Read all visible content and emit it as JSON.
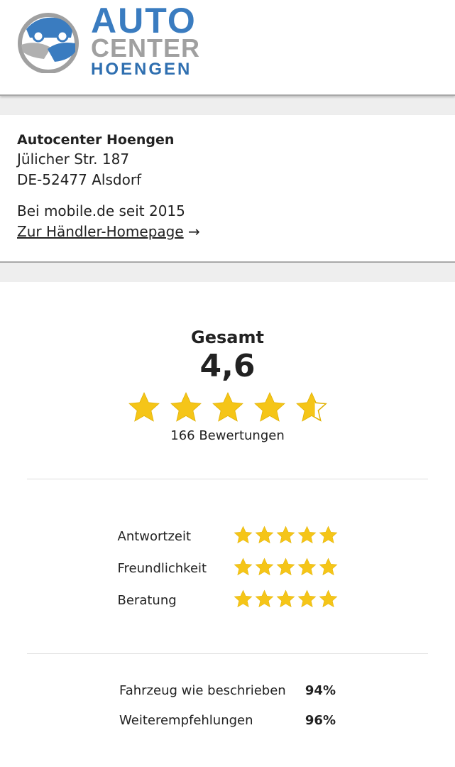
{
  "logo": {
    "line1": "AUTO",
    "line2": "CENTER",
    "line3": "HOENGEN"
  },
  "dealer": {
    "name": "Autocenter Hoengen",
    "street": "Jülicher Str. 187",
    "city": "DE-52477 Alsdorf",
    "since": "Bei mobile.de seit 2015",
    "homepage_link": "Zur Händler-Homepage",
    "link_arrow": "→"
  },
  "rating": {
    "label": "Gesamt",
    "score": "4,6",
    "value": 4.6,
    "count": "166 Bewertungen"
  },
  "sub_ratings": [
    {
      "label": "Antwortzeit",
      "value": 5
    },
    {
      "label": "Freundlichkeit",
      "value": 5
    },
    {
      "label": "Beratung",
      "value": 4.9
    }
  ],
  "recommendations": [
    {
      "label": "Fahrzeug wie beschrieben",
      "value": "94%"
    },
    {
      "label": "Weiterempfehlungen",
      "value": "96%"
    }
  ],
  "colors": {
    "star": "#f5c518",
    "star_stroke": "#e0b000",
    "logo_blue": "#3a7cc0",
    "logo_gray": "#a0a0a0"
  }
}
